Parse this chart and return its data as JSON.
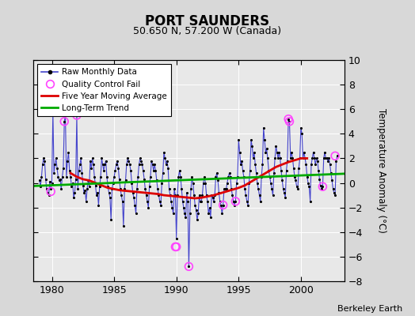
{
  "title": "PORT SAUNDERS",
  "subtitle": "50.650 N, 57.200 W (Canada)",
  "ylabel": "Temperature Anomaly (°C)",
  "attribution": "Berkeley Earth",
  "xlim": [
    1978.5,
    2003.5
  ],
  "ylim": [
    -8,
    10
  ],
  "yticks": [
    -8,
    -6,
    -4,
    -2,
    0,
    2,
    4,
    6,
    8,
    10
  ],
  "xticks": [
    1980,
    1985,
    1990,
    1995,
    2000
  ],
  "background_color": "#e8e8e8",
  "fig_background": "#d8d8d8",
  "raw_color": "#4444cc",
  "dot_color": "#000000",
  "ma_color": "#dd0000",
  "trend_color": "#00aa00",
  "qc_color": "#ff44ff",
  "raw_monthly": [
    [
      1979.0,
      0.2
    ],
    [
      1979.083,
      -0.3
    ],
    [
      1979.167,
      0.5
    ],
    [
      1979.25,
      1.5
    ],
    [
      1979.333,
      2.0
    ],
    [
      1979.417,
      1.8
    ],
    [
      1979.5,
      0.3
    ],
    [
      1979.583,
      -0.5
    ],
    [
      1979.667,
      -0.8
    ],
    [
      1979.75,
      -1.0
    ],
    [
      1979.833,
      0.1
    ],
    [
      1979.917,
      -0.5
    ],
    [
      1980.0,
      0.0
    ],
    [
      1980.083,
      5.8
    ],
    [
      1980.167,
      0.8
    ],
    [
      1980.25,
      1.5
    ],
    [
      1980.333,
      2.0
    ],
    [
      1980.417,
      1.2
    ],
    [
      1980.5,
      0.5
    ],
    [
      1980.583,
      0.2
    ],
    [
      1980.667,
      0.3
    ],
    [
      1980.75,
      -0.5
    ],
    [
      1980.833,
      0.5
    ],
    [
      1980.917,
      1.2
    ],
    [
      1981.0,
      5.0
    ],
    [
      1981.083,
      5.5
    ],
    [
      1981.167,
      0.5
    ],
    [
      1981.25,
      1.8
    ],
    [
      1981.333,
      2.5
    ],
    [
      1981.417,
      1.0
    ],
    [
      1981.5,
      0.5
    ],
    [
      1981.583,
      -0.3
    ],
    [
      1981.667,
      0.0
    ],
    [
      1981.75,
      -1.2
    ],
    [
      1981.833,
      -0.8
    ],
    [
      1981.917,
      0.3
    ],
    [
      1982.0,
      5.5
    ],
    [
      1982.083,
      -0.5
    ],
    [
      1982.167,
      1.0
    ],
    [
      1982.25,
      1.5
    ],
    [
      1982.333,
      2.0
    ],
    [
      1982.417,
      0.8
    ],
    [
      1982.5,
      -0.2
    ],
    [
      1982.583,
      -0.8
    ],
    [
      1982.667,
      -0.6
    ],
    [
      1982.75,
      -1.5
    ],
    [
      1982.833,
      -0.5
    ],
    [
      1982.917,
      0.2
    ],
    [
      1983.0,
      -0.3
    ],
    [
      1983.083,
      1.8
    ],
    [
      1983.167,
      1.2
    ],
    [
      1983.25,
      2.0
    ],
    [
      1983.333,
      1.5
    ],
    [
      1983.417,
      0.5
    ],
    [
      1983.5,
      -0.2
    ],
    [
      1983.583,
      -1.0
    ],
    [
      1983.667,
      -0.8
    ],
    [
      1983.75,
      -1.8
    ],
    [
      1983.833,
      -0.3
    ],
    [
      1983.917,
      0.5
    ],
    [
      1984.0,
      2.0
    ],
    [
      1984.083,
      1.5
    ],
    [
      1984.167,
      1.0
    ],
    [
      1984.25,
      1.5
    ],
    [
      1984.333,
      1.8
    ],
    [
      1984.417,
      0.5
    ],
    [
      1984.5,
      -0.3
    ],
    [
      1984.583,
      -0.8
    ],
    [
      1984.667,
      -1.2
    ],
    [
      1984.75,
      -3.0
    ],
    [
      1984.833,
      -0.5
    ],
    [
      1984.917,
      0.0
    ],
    [
      1985.0,
      0.5
    ],
    [
      1985.083,
      1.0
    ],
    [
      1985.167,
      1.5
    ],
    [
      1985.25,
      1.8
    ],
    [
      1985.333,
      1.2
    ],
    [
      1985.417,
      0.3
    ],
    [
      1985.5,
      -0.5
    ],
    [
      1985.583,
      -1.0
    ],
    [
      1985.667,
      -1.5
    ],
    [
      1985.75,
      -3.5
    ],
    [
      1985.833,
      -0.5
    ],
    [
      1985.917,
      0.2
    ],
    [
      1986.0,
      1.5
    ],
    [
      1986.083,
      2.0
    ],
    [
      1986.167,
      1.8
    ],
    [
      1986.25,
      1.5
    ],
    [
      1986.333,
      1.0
    ],
    [
      1986.417,
      0.0
    ],
    [
      1986.5,
      -0.8
    ],
    [
      1986.583,
      -1.2
    ],
    [
      1986.667,
      -1.8
    ],
    [
      1986.75,
      -2.5
    ],
    [
      1986.833,
      -0.5
    ],
    [
      1986.917,
      0.5
    ],
    [
      1987.0,
      1.5
    ],
    [
      1987.083,
      2.0
    ],
    [
      1987.167,
      1.8
    ],
    [
      1987.25,
      1.5
    ],
    [
      1987.333,
      1.0
    ],
    [
      1987.417,
      0.3
    ],
    [
      1987.5,
      -0.5
    ],
    [
      1987.583,
      -1.0
    ],
    [
      1987.667,
      -1.5
    ],
    [
      1987.75,
      -2.0
    ],
    [
      1987.833,
      -0.3
    ],
    [
      1987.917,
      0.5
    ],
    [
      1988.0,
      1.8
    ],
    [
      1988.083,
      1.5
    ],
    [
      1988.167,
      1.0
    ],
    [
      1988.25,
      1.5
    ],
    [
      1988.333,
      1.0
    ],
    [
      1988.417,
      0.2
    ],
    [
      1988.5,
      -0.5
    ],
    [
      1988.583,
      -1.0
    ],
    [
      1988.667,
      -1.5
    ],
    [
      1988.75,
      -1.8
    ],
    [
      1988.833,
      0.0
    ],
    [
      1988.917,
      0.8
    ],
    [
      1989.0,
      2.5
    ],
    [
      1989.083,
      2.0
    ],
    [
      1989.167,
      1.5
    ],
    [
      1989.25,
      1.8
    ],
    [
      1989.333,
      1.2
    ],
    [
      1989.417,
      -0.5
    ],
    [
      1989.5,
      -1.0
    ],
    [
      1989.583,
      -1.5
    ],
    [
      1989.667,
      -2.0
    ],
    [
      1989.75,
      -2.5
    ],
    [
      1989.833,
      -0.5
    ],
    [
      1989.917,
      -1.0
    ],
    [
      1990.0,
      -4.5
    ],
    [
      1990.083,
      -1.0
    ],
    [
      1990.167,
      0.5
    ],
    [
      1990.25,
      1.0
    ],
    [
      1990.333,
      0.5
    ],
    [
      1990.417,
      -0.5
    ],
    [
      1990.5,
      -1.5
    ],
    [
      1990.583,
      -2.0
    ],
    [
      1990.667,
      -2.5
    ],
    [
      1990.75,
      -2.8
    ],
    [
      1990.833,
      -0.8
    ],
    [
      1990.917,
      -1.5
    ],
    [
      1991.0,
      -6.8
    ],
    [
      1991.083,
      -2.5
    ],
    [
      1991.167,
      -0.5
    ],
    [
      1991.25,
      0.5
    ],
    [
      1991.333,
      0.0
    ],
    [
      1991.417,
      -1.0
    ],
    [
      1991.5,
      -1.8
    ],
    [
      1991.583,
      -2.2
    ],
    [
      1991.667,
      -3.0
    ],
    [
      1991.75,
      -2.5
    ],
    [
      1991.833,
      -1.0
    ],
    [
      1991.917,
      -1.5
    ],
    [
      1992.0,
      -1.5
    ],
    [
      1992.083,
      -1.0
    ],
    [
      1992.167,
      0.0
    ],
    [
      1992.25,
      0.5
    ],
    [
      1992.333,
      0.0
    ],
    [
      1992.417,
      -1.0
    ],
    [
      1992.5,
      -1.5
    ],
    [
      1992.583,
      -2.5
    ],
    [
      1992.667,
      -2.0
    ],
    [
      1992.75,
      -2.8
    ],
    [
      1992.833,
      -1.0
    ],
    [
      1992.917,
      -1.2
    ],
    [
      1993.0,
      -1.5
    ],
    [
      1993.083,
      -1.0
    ],
    [
      1993.167,
      0.5
    ],
    [
      1993.25,
      0.8
    ],
    [
      1993.333,
      0.2
    ],
    [
      1993.417,
      -0.8
    ],
    [
      1993.5,
      -1.5
    ],
    [
      1993.583,
      -1.8
    ],
    [
      1993.667,
      -2.5
    ],
    [
      1993.75,
      -1.8
    ],
    [
      1993.833,
      -0.5
    ],
    [
      1993.917,
      -0.5
    ],
    [
      1994.0,
      -0.5
    ],
    [
      1994.083,
      0.0
    ],
    [
      1994.167,
      0.5
    ],
    [
      1994.25,
      0.8
    ],
    [
      1994.333,
      0.5
    ],
    [
      1994.417,
      -0.5
    ],
    [
      1994.5,
      -1.0
    ],
    [
      1994.583,
      -1.5
    ],
    [
      1994.667,
      -1.8
    ],
    [
      1994.75,
      -1.5
    ],
    [
      1994.833,
      0.0
    ],
    [
      1994.917,
      0.5
    ],
    [
      1995.0,
      3.5
    ],
    [
      1995.083,
      2.5
    ],
    [
      1995.167,
      1.5
    ],
    [
      1995.25,
      1.8
    ],
    [
      1995.333,
      1.0
    ],
    [
      1995.417,
      0.5
    ],
    [
      1995.5,
      -0.5
    ],
    [
      1995.583,
      -1.0
    ],
    [
      1995.667,
      -1.5
    ],
    [
      1995.75,
      -1.8
    ],
    [
      1995.833,
      0.0
    ],
    [
      1995.917,
      1.0
    ],
    [
      1996.0,
      3.5
    ],
    [
      1996.083,
      3.0
    ],
    [
      1996.167,
      2.0
    ],
    [
      1996.25,
      2.5
    ],
    [
      1996.333,
      1.5
    ],
    [
      1996.417,
      0.8
    ],
    [
      1996.5,
      0.0
    ],
    [
      1996.583,
      -0.5
    ],
    [
      1996.667,
      -1.0
    ],
    [
      1996.75,
      -1.5
    ],
    [
      1996.833,
      0.5
    ],
    [
      1996.917,
      1.5
    ],
    [
      1997.0,
      4.5
    ],
    [
      1997.083,
      3.5
    ],
    [
      1997.167,
      2.5
    ],
    [
      1997.25,
      2.8
    ],
    [
      1997.333,
      2.0
    ],
    [
      1997.417,
      1.0
    ],
    [
      1997.5,
      0.5
    ],
    [
      1997.583,
      0.0
    ],
    [
      1997.667,
      -0.5
    ],
    [
      1997.75,
      -1.0
    ],
    [
      1997.833,
      0.8
    ],
    [
      1997.917,
      2.0
    ],
    [
      1998.0,
      3.0
    ],
    [
      1998.083,
      2.5
    ],
    [
      1998.167,
      2.0
    ],
    [
      1998.25,
      2.5
    ],
    [
      1998.333,
      2.0
    ],
    [
      1998.417,
      1.0
    ],
    [
      1998.5,
      0.2
    ],
    [
      1998.583,
      -0.5
    ],
    [
      1998.667,
      -0.8
    ],
    [
      1998.75,
      -1.2
    ],
    [
      1998.833,
      1.0
    ],
    [
      1998.917,
      1.8
    ],
    [
      1999.0,
      5.2
    ],
    [
      1999.083,
      5.0
    ],
    [
      1999.167,
      2.0
    ],
    [
      1999.25,
      2.5
    ],
    [
      1999.333,
      2.0
    ],
    [
      1999.417,
      1.2
    ],
    [
      1999.5,
      0.5
    ],
    [
      1999.583,
      0.2
    ],
    [
      1999.667,
      -0.3
    ],
    [
      1999.75,
      -0.5
    ],
    [
      1999.833,
      1.2
    ],
    [
      1999.917,
      2.0
    ],
    [
      2000.0,
      4.5
    ],
    [
      2000.083,
      4.0
    ],
    [
      2000.167,
      2.0
    ],
    [
      2000.25,
      2.5
    ],
    [
      2000.333,
      2.0
    ],
    [
      2000.417,
      1.5
    ],
    [
      2000.5,
      0.5
    ],
    [
      2000.583,
      0.0
    ],
    [
      2000.667,
      -0.3
    ],
    [
      2000.75,
      -1.5
    ],
    [
      2000.833,
      1.5
    ],
    [
      2000.917,
      2.0
    ],
    [
      2001.0,
      2.5
    ],
    [
      2001.083,
      2.0
    ],
    [
      2001.167,
      1.5
    ],
    [
      2001.25,
      2.0
    ],
    [
      2001.333,
      1.8
    ],
    [
      2001.417,
      1.0
    ],
    [
      2001.5,
      0.3
    ],
    [
      2001.583,
      -0.2
    ],
    [
      2001.667,
      -0.5
    ],
    [
      2001.75,
      -0.3
    ],
    [
      2001.833,
      2.0
    ],
    [
      2001.917,
      2.5
    ],
    [
      2002.0,
      2.0
    ],
    [
      2002.083,
      2.0
    ],
    [
      2002.167,
      1.8
    ],
    [
      2002.25,
      2.0
    ],
    [
      2002.333,
      1.5
    ],
    [
      2002.417,
      0.8
    ],
    [
      2002.5,
      0.2
    ],
    [
      2002.583,
      -0.5
    ],
    [
      2002.667,
      -0.8
    ],
    [
      2002.75,
      -1.0
    ],
    [
      2002.833,
      1.8
    ],
    [
      2002.917,
      2.2
    ]
  ],
  "qc_fail_points": [
    [
      1979.917,
      -0.7
    ],
    [
      1980.083,
      5.8
    ],
    [
      1981.0,
      5.0
    ],
    [
      1982.0,
      5.5
    ],
    [
      1989.917,
      -5.2
    ],
    [
      1990.0,
      -5.2
    ],
    [
      1991.0,
      -6.8
    ],
    [
      1993.75,
      -1.8
    ],
    [
      1994.75,
      -1.5
    ],
    [
      1999.0,
      5.2
    ],
    [
      1999.083,
      5.0
    ],
    [
      2001.75,
      -0.3
    ],
    [
      2002.75,
      2.2
    ]
  ],
  "moving_avg": [
    [
      1981.5,
      0.8
    ],
    [
      1982.0,
      0.5
    ],
    [
      1982.5,
      0.3
    ],
    [
      1983.0,
      0.2
    ],
    [
      1983.5,
      0.0
    ],
    [
      1984.0,
      -0.2
    ],
    [
      1984.5,
      -0.4
    ],
    [
      1985.0,
      -0.5
    ],
    [
      1985.5,
      -0.6
    ],
    [
      1986.0,
      -0.65
    ],
    [
      1986.5,
      -0.7
    ],
    [
      1987.0,
      -0.75
    ],
    [
      1987.5,
      -0.8
    ],
    [
      1988.0,
      -0.85
    ],
    [
      1988.5,
      -0.9
    ],
    [
      1989.0,
      -1.0
    ],
    [
      1989.5,
      -1.05
    ],
    [
      1990.0,
      -1.1
    ],
    [
      1990.5,
      -1.15
    ],
    [
      1991.0,
      -1.2
    ],
    [
      1991.5,
      -1.25
    ],
    [
      1992.0,
      -1.2
    ],
    [
      1992.5,
      -1.1
    ],
    [
      1993.0,
      -1.0
    ],
    [
      1993.5,
      -0.85
    ],
    [
      1994.0,
      -0.7
    ],
    [
      1994.5,
      -0.55
    ],
    [
      1995.0,
      -0.4
    ],
    [
      1995.5,
      -0.2
    ],
    [
      1996.0,
      0.1
    ],
    [
      1996.5,
      0.4
    ],
    [
      1997.0,
      0.7
    ],
    [
      1997.5,
      1.0
    ],
    [
      1998.0,
      1.3
    ],
    [
      1998.5,
      1.5
    ],
    [
      1999.0,
      1.7
    ],
    [
      1999.5,
      1.85
    ],
    [
      2000.0,
      2.0
    ],
    [
      2000.5,
      2.0
    ]
  ],
  "trend_x": [
    1978.5,
    2003.5
  ],
  "trend_y": [
    -0.25,
    0.75
  ]
}
